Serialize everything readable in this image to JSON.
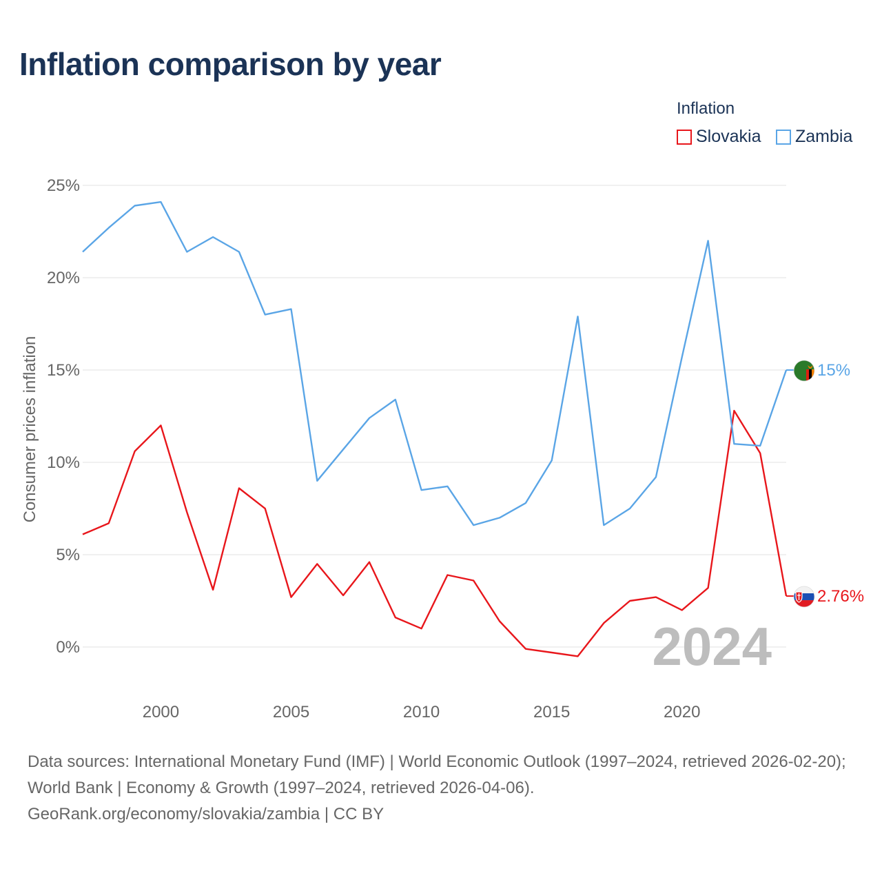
{
  "title": "Inflation comparison by year",
  "legend": {
    "title": "Inflation",
    "items": [
      {
        "label": "Slovakia",
        "color": "#e8161b"
      },
      {
        "label": "Zambia",
        "color": "#5aa5e6"
      }
    ]
  },
  "chart_data": {
    "type": "line",
    "title": "Inflation comparison by year",
    "xlabel": "",
    "ylabel": "Consumer prices inflation",
    "x": [
      1997,
      1998,
      1999,
      2000,
      2001,
      2002,
      2003,
      2004,
      2005,
      2006,
      2007,
      2008,
      2009,
      2010,
      2011,
      2012,
      2013,
      2014,
      2015,
      2016,
      2017,
      2018,
      2019,
      2020,
      2021,
      2022,
      2023,
      2024
    ],
    "xlim": [
      1997,
      2024
    ],
    "ylim": [
      -2.5,
      25
    ],
    "yticks": [
      0,
      5,
      10,
      15,
      20,
      25
    ],
    "ytick_labels": [
      "0%",
      "5%",
      "10%",
      "15%",
      "20%",
      "25%"
    ],
    "xticks": [
      2000,
      2005,
      2010,
      2015,
      2020
    ],
    "xtick_labels": [
      "2000",
      "2005",
      "2010",
      "2015",
      "2020"
    ],
    "grid": true,
    "legend_position": "top-right",
    "year_watermark": "2024",
    "series": [
      {
        "name": "Slovakia",
        "color": "#e8161b",
        "values": [
          6.1,
          6.7,
          10.6,
          12.0,
          7.3,
          3.1,
          8.6,
          7.5,
          2.7,
          4.5,
          2.8,
          4.6,
          1.6,
          1.0,
          3.9,
          3.6,
          1.4,
          -0.1,
          -0.3,
          -0.5,
          1.3,
          2.5,
          2.7,
          2.0,
          3.2,
          12.8,
          10.5,
          2.76
        ],
        "end_label": "2.76%",
        "marker_icon": "slovakia-flag-icon"
      },
      {
        "name": "Zambia",
        "color": "#5aa5e6",
        "values": [
          21.4,
          22.7,
          23.9,
          24.1,
          21.4,
          22.2,
          21.4,
          18.0,
          18.3,
          9.0,
          10.7,
          12.4,
          13.4,
          8.5,
          8.7,
          6.6,
          7.0,
          7.8,
          10.1,
          17.9,
          6.6,
          7.5,
          9.2,
          15.7,
          22.0,
          11.0,
          10.9,
          15.0
        ],
        "end_label": "15%",
        "marker_icon": "zambia-flag-icon"
      }
    ]
  },
  "footer": {
    "sources": "Data sources: International Monetary Fund (IMF) | World Economic Outlook (1997–2024, retrieved 2026-02-20); World Bank | Economy & Growth (1997–2024, retrieved 2026-04-06).",
    "credit": "GeoRank.org/economy/slovakia/zambia | CC BY"
  }
}
